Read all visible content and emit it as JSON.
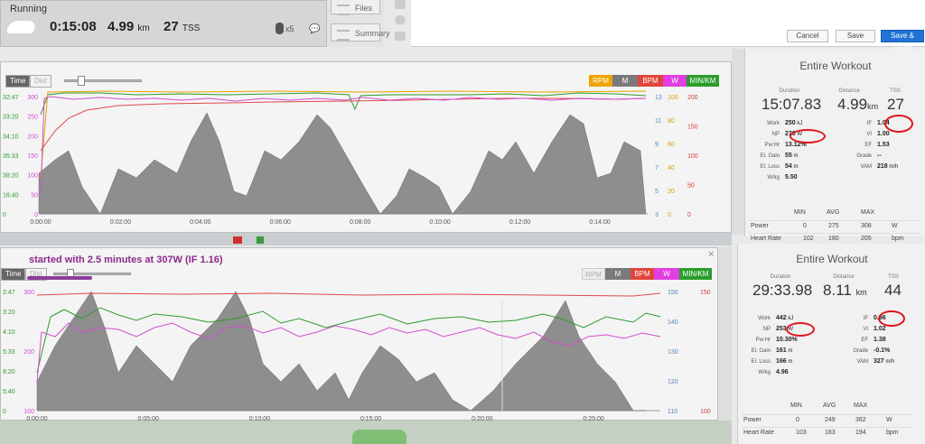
{
  "header": {
    "sport": "Running",
    "duration": "0:15:08",
    "distance_value": "4.99",
    "distance_unit": "km",
    "tss_value": "27",
    "tss_unit": "TSS",
    "shoe_count": "x5",
    "files_label": "Files",
    "summary_label": "Summary"
  },
  "actions": {
    "cancel": "Cancel",
    "save": "Save",
    "save_close": "Save & Close"
  },
  "annotation": "started with 2.5 minutes at 307W (IF 1.16)",
  "colors": {
    "power": "#d14ed1",
    "pace": "#2f9a2f",
    "heart_rate": "#e04848",
    "cadence": "#e8a000",
    "elevation_fill": "#8f8f8f",
    "save_close": "#1f73d6",
    "highlight_circle": "#e0151b"
  },
  "chart1": {
    "toggles": [
      "Time",
      "Dist"
    ],
    "legend": [
      "RPM",
      "M",
      "BPM",
      "W",
      "MIN/KM"
    ],
    "y_pace_labels": [
      "32:47",
      "33:20",
      "34:10",
      "35:33",
      "38:20",
      "16:40",
      "0"
    ],
    "y_power_labels": [
      "300",
      "250",
      "200",
      "150",
      "100",
      "50",
      "0"
    ],
    "y_m_labels": [
      "13",
      "11",
      "9",
      "7",
      "5",
      "3"
    ],
    "y_rpm_labels": [
      "100",
      "80",
      "60",
      "40",
      "20",
      "0"
    ],
    "y_bpm_labels": [
      "200",
      "150",
      "100",
      "50",
      "0"
    ],
    "x_labels": [
      "0:00:00",
      "0:02:00",
      "0:04:00",
      "0:06:00",
      "0:08:00",
      "0:10:00",
      "0:12:00",
      "0:14:00"
    ]
  },
  "chart2": {
    "toggles": [
      "Time",
      "Dist"
    ],
    "legend": [
      "RPM",
      "M",
      "BPM",
      "W",
      "MIN/KM"
    ],
    "y_pace_labels": [
      "2:47",
      "3:20",
      "4:10",
      "5:33",
      "8:20",
      "5:40",
      "0"
    ],
    "y_power_labels": [
      "300",
      "200",
      "100"
    ],
    "y_m_labels": [
      "150",
      "140",
      "130",
      "120",
      "110"
    ],
    "y_bpm_labels": [
      "150",
      "100"
    ],
    "x_labels": [
      "0:00:00",
      "0:05:00",
      "0:10:00",
      "0:15:00",
      "0:20:00",
      "0:25:00"
    ]
  },
  "stats1": {
    "title": "Entire Workout",
    "duration_label": "Duration",
    "duration": "15:07.83",
    "distance_label": "Distance",
    "distance": "4.99",
    "distance_unit": "km",
    "tss_label": "TSS",
    "tss": "27",
    "left": [
      {
        "k": "Work",
        "v": "250",
        "u": "kJ"
      },
      {
        "k": "NP",
        "v": "276",
        "u": "W"
      },
      {
        "k": "Pw:Hr",
        "v": "13.12%",
        "u": ""
      },
      {
        "k": "El. Gain",
        "v": "55",
        "u": "m"
      },
      {
        "k": "El. Loss",
        "v": "54",
        "u": "m"
      },
      {
        "k": "W/kg",
        "v": "5.50",
        "u": ""
      }
    ],
    "right": [
      {
        "k": "IF",
        "v": "1.04",
        "u": ""
      },
      {
        "k": "VI",
        "v": "1.00",
        "u": ""
      },
      {
        "k": "EF",
        "v": "1.53",
        "u": ""
      },
      {
        "k": "Grade",
        "v": "--",
        "u": ""
      },
      {
        "k": "VAM",
        "v": "218",
        "u": "m/h"
      }
    ],
    "table_head": [
      "MIN",
      "AVG",
      "MAX"
    ],
    "rows": [
      {
        "name": "Power",
        "min": "0",
        "avg": "275",
        "max": "308",
        "unit": "W"
      },
      {
        "name": "Heart Rate",
        "min": "102",
        "avg": "180",
        "max": "205",
        "unit": "bpm"
      }
    ]
  },
  "stats2": {
    "title": "Entire Workout",
    "duration_label": "Duration",
    "duration": "29:33.98",
    "distance_label": "Distance",
    "distance": "8.11",
    "distance_unit": "km",
    "tss_label": "TSS",
    "tss": "44",
    "left": [
      {
        "k": "Work",
        "v": "442",
        "u": "kJ"
      },
      {
        "k": "NP",
        "v": "253",
        "u": "W"
      },
      {
        "k": "Pw:Hr",
        "v": "10.30%",
        "u": ""
      },
      {
        "k": "El. Gain",
        "v": "161",
        "u": "m"
      },
      {
        "k": "El. Loss",
        "v": "166",
        "u": "m"
      },
      {
        "k": "W/kg",
        "v": "4.96",
        "u": ""
      }
    ],
    "right": [
      {
        "k": "IF",
        "v": "0.96",
        "u": ""
      },
      {
        "k": "VI",
        "v": "1.02",
        "u": ""
      },
      {
        "k": "EF",
        "v": "1.38",
        "u": ""
      },
      {
        "k": "Grade",
        "v": "-0.1%",
        "u": ""
      },
      {
        "k": "VAM",
        "v": "327",
        "u": "m/h"
      }
    ],
    "table_head": [
      "MIN",
      "AVG",
      "MAX"
    ],
    "rows": [
      {
        "name": "Power",
        "min": "0",
        "avg": "249",
        "max": "362",
        "unit": "W"
      },
      {
        "name": "Heart Rate",
        "min": "103",
        "avg": "183",
        "max": "194",
        "unit": "bpm"
      }
    ]
  }
}
